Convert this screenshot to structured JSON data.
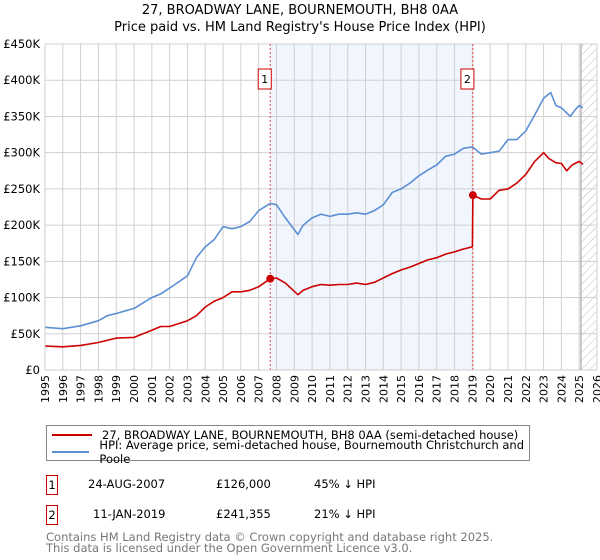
{
  "chart_data": {
    "type": "line",
    "title": "27, BROADWAY LANE, BOURNEMOUTH, BH8 0AA",
    "subtitle": "Price paid vs. HM Land Registry's House Price Index (HPI)",
    "xlim": [
      1995,
      2026
    ],
    "ylim": [
      0,
      450000
    ],
    "y_ticks": [
      0,
      50000,
      100000,
      150000,
      200000,
      250000,
      300000,
      350000,
      400000,
      450000
    ],
    "y_tick_labels": [
      "£0",
      "£50K",
      "£100K",
      "£150K",
      "£200K",
      "£250K",
      "£300K",
      "£350K",
      "£400K",
      "£450K"
    ],
    "x_tick_labels": [
      "1995",
      "1996",
      "1997",
      "1998",
      "1999",
      "2000",
      "2001",
      "2002",
      "2003",
      "2004",
      "2005",
      "2006",
      "2007",
      "2008",
      "2009",
      "2010",
      "2011",
      "2012",
      "2013",
      "2014",
      "2015",
      "2016",
      "2017",
      "2018",
      "2019",
      "2020",
      "2021",
      "2022",
      "2023",
      "2024",
      "2025",
      "2026"
    ],
    "grid": true,
    "shaded_span": [
      2007.65,
      2019.03
    ],
    "hatched_from": 2025.1,
    "series": [
      {
        "name": "27, BROADWAY LANE, BOURNEMOUTH, BH8 0AA (semi-detached house)",
        "color": "#cc0000",
        "x": [
          1995,
          1996,
          1997,
          1998,
          1999,
          2000,
          2001,
          2001.5,
          2002,
          2003,
          2003.5,
          2004,
          2004.5,
          2005,
          2005.5,
          2006,
          2006.5,
          2007,
          2007.65,
          2008,
          2008.5,
          2009.2,
          2009.5,
          2010,
          2010.5,
          2011,
          2011.5,
          2012,
          2012.5,
          2013,
          2013.5,
          2014,
          2014.5,
          2015,
          2015.5,
          2016,
          2016.5,
          2017,
          2017.5,
          2018,
          2018.5,
          2019.0,
          2019.03,
          2019.5,
          2020,
          2020.5,
          2021,
          2021.5,
          2022,
          2022.5,
          2023,
          2023.3,
          2023.7,
          2024,
          2024.3,
          2024.6,
          2025,
          2025.2
        ],
        "y": [
          33000,
          32000,
          34000,
          38000,
          44000,
          45000,
          55000,
          60000,
          60000,
          68000,
          75000,
          87000,
          95000,
          100000,
          108000,
          108000,
          110000,
          115000,
          126000,
          127000,
          120000,
          104000,
          110000,
          115000,
          118000,
          117000,
          118000,
          118000,
          120000,
          118000,
          121000,
          127000,
          133000,
          138000,
          142000,
          147000,
          152000,
          155000,
          160000,
          163000,
          167000,
          170000,
          241355,
          236000,
          236000,
          248000,
          250000,
          258000,
          270000,
          288000,
          300000,
          292000,
          286000,
          285000,
          275000,
          283000,
          288000,
          284000
        ]
      },
      {
        "name": "HPI: Average price, semi-detached house, Bournemouth Christchurch and Poole",
        "color": "#5b8fd4",
        "x": [
          1995,
          1996,
          1997,
          1998,
          1998.5,
          1999,
          2000,
          2001,
          2001.5,
          2002,
          2003,
          2003.5,
          2004,
          2004.5,
          2005,
          2005.5,
          2006,
          2006.5,
          2007,
          2007.65,
          2008,
          2008.5,
          2009.2,
          2009.5,
          2010,
          2010.5,
          2011,
          2011.5,
          2012,
          2012.5,
          2013,
          2013.5,
          2014,
          2014.5,
          2015,
          2015.5,
          2016,
          2016.5,
          2017,
          2017.5,
          2018,
          2018.5,
          2019,
          2019.5,
          2020,
          2020.5,
          2021,
          2021.5,
          2022,
          2022.5,
          2023,
          2023.4,
          2023.7,
          2024,
          2024.5,
          2024.8,
          2025,
          2025.2
        ],
        "y": [
          59000,
          57000,
          61000,
          68000,
          75000,
          78000,
          85000,
          100000,
          105000,
          113000,
          130000,
          155000,
          170000,
          180000,
          198000,
          195000,
          198000,
          205000,
          220000,
          230000,
          228000,
          210000,
          187000,
          200000,
          210000,
          215000,
          212000,
          215000,
          215000,
          217000,
          215000,
          220000,
          228000,
          245000,
          250000,
          258000,
          268000,
          276000,
          283000,
          295000,
          298000,
          306000,
          308000,
          298000,
          300000,
          302000,
          318000,
          318000,
          330000,
          352000,
          375000,
          383000,
          365000,
          362000,
          350000,
          360000,
          365000,
          362000
        ]
      }
    ],
    "sales": [
      {
        "label": "1",
        "x": 2007.65,
        "y": 126000
      },
      {
        "label": "2",
        "x": 2019.03,
        "y": 241355
      }
    ]
  },
  "legend": {
    "property": "27, BROADWAY LANE, BOURNEMOUTH, BH8 0AA (semi-detached house)",
    "hpi": "HPI: Average price, semi-detached house, Bournemouth Christchurch and Poole"
  },
  "transactions": [
    {
      "num": "1",
      "date": "24-AUG-2007",
      "price": "£126,000",
      "hpi": "45% ↓ HPI"
    },
    {
      "num": "2",
      "date": "11-JAN-2019",
      "price": "£241,355",
      "hpi": "21% ↓ HPI"
    }
  ],
  "footer": {
    "line1": "Contains HM Land Registry data © Crown copyright and database right 2025.",
    "line2": "This data is licensed under the Open Government Licence v3.0."
  }
}
